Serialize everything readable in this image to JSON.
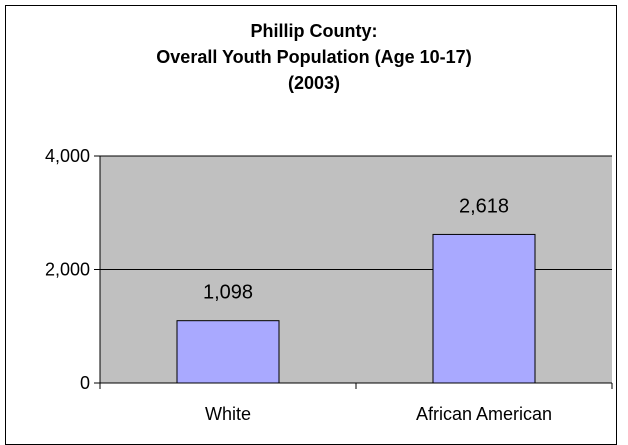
{
  "chart_data": {
    "type": "bar",
    "title_lines": [
      "Phillip County:",
      "Overall Youth Population (Age 10-17)",
      "(2003)"
    ],
    "categories": [
      "White",
      "African American"
    ],
    "values": [
      1098,
      2618
    ],
    "value_labels": [
      "1,098",
      "2,618"
    ],
    "ylim": [
      0,
      4000
    ],
    "yticks": [
      0,
      2000,
      4000
    ],
    "ytick_labels": [
      "0",
      "2,000",
      "4,000"
    ],
    "xlabel": "",
    "ylabel": "",
    "grid": true,
    "legend": "none",
    "colors": {
      "bar": "#a9a9ff",
      "bar_border": "#000000",
      "plot_background": "#c0c0c0",
      "gridline": "#000000"
    }
  }
}
